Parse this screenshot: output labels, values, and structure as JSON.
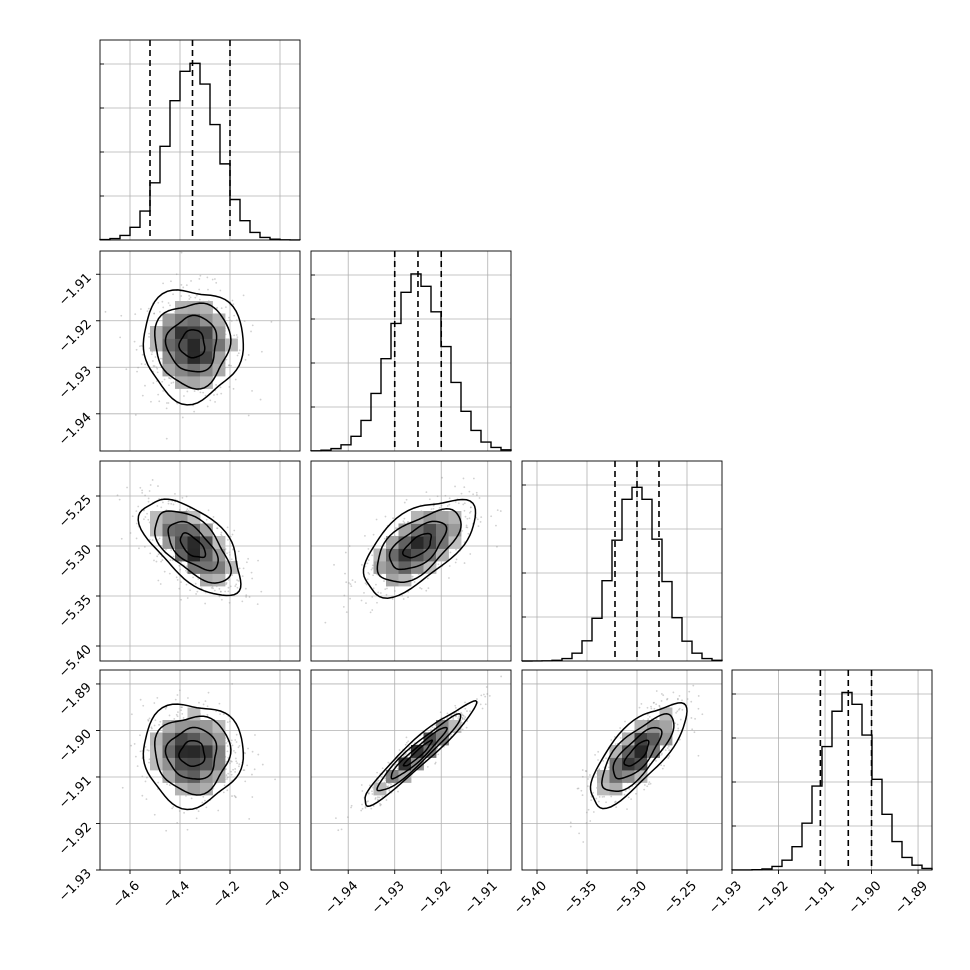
{
  "chart_data": {
    "type": "corner",
    "title": "",
    "grid": true,
    "parameters": [
      {
        "mean": -4.35,
        "sd": 0.1,
        "range": [
          -4.72,
          -3.92
        ],
        "ticks": [
          -4.6,
          -4.4,
          -4.2,
          -4.0
        ],
        "tick_labels": [
          "−4.6",
          "−4.4",
          "−4.2",
          "−4.0"
        ],
        "quantiles": [
          -4.52,
          -4.35,
          -4.2
        ]
      },
      {
        "mean": -1.925,
        "sd": 0.006,
        "range": [
          -1.948,
          -1.905
        ],
        "ticks": [
          -1.94,
          -1.93,
          -1.92,
          -1.91
        ],
        "tick_labels": [
          "−1.94",
          "−1.93",
          "−1.92",
          "−1.91"
        ],
        "quantiles": [
          -1.93,
          -1.925,
          -1.92
        ]
      },
      {
        "mean": -5.3,
        "sd": 0.024,
        "range": [
          -5.415,
          -5.215
        ],
        "ticks": [
          -5.4,
          -5.35,
          -5.3,
          -5.25
        ],
        "tick_labels": [
          "−5.40",
          "−5.35",
          "−5.30",
          "−5.25"
        ],
        "quantiles": [
          -5.322,
          -5.3,
          -5.278
        ]
      },
      {
        "mean": -1.905,
        "sd": 0.0055,
        "range": [
          -1.93,
          -1.887
        ],
        "ticks": [
          -1.93,
          -1.92,
          -1.91,
          -1.9,
          -1.89
        ],
        "tick_labels": [
          "−1.93",
          "−1.92",
          "−1.91",
          "−1.90",
          "−1.89"
        ],
        "quantiles": [
          -1.911,
          -1.905,
          -1.9
        ]
      }
    ],
    "correlations": [
      {
        "x": 0,
        "y": 1,
        "rho": 0.0
      },
      {
        "x": 0,
        "y": 2,
        "rho": -0.6
      },
      {
        "x": 1,
        "y": 2,
        "rho": 0.6
      },
      {
        "x": 0,
        "y": 3,
        "rho": 0.0
      },
      {
        "x": 1,
        "y": 3,
        "rho": 0.95
      },
      {
        "x": 2,
        "y": 3,
        "rho": 0.75
      }
    ],
    "contour_levels_sigma": [
      0.5,
      1.0,
      1.5,
      2.0
    ],
    "colors": {
      "ink": "#000000",
      "grid": "#b0b0b0",
      "samples": "#9a9a9a"
    }
  }
}
